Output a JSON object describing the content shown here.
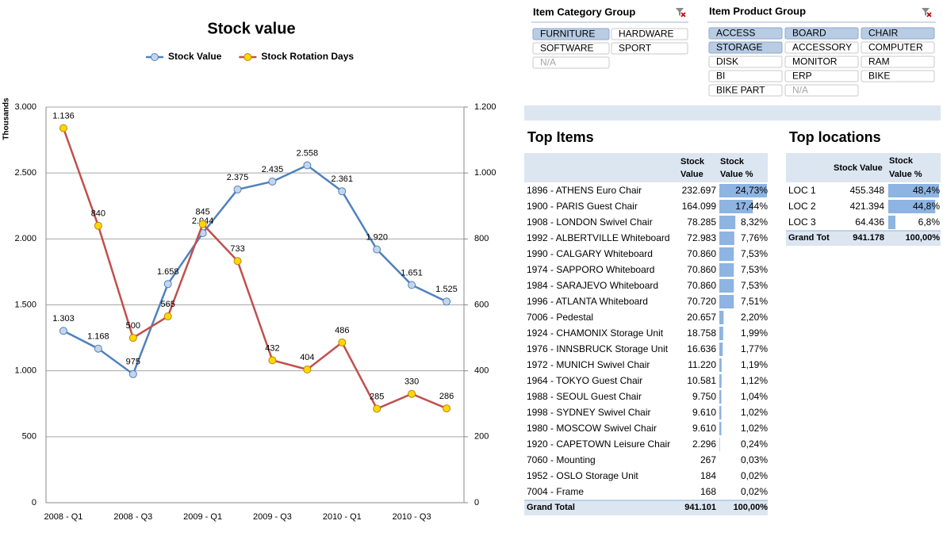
{
  "chart_data": {
    "type": "line",
    "title": "Stock value",
    "y_label": "Thousands",
    "categories": [
      "2008 - Q1",
      null,
      "2008 - Q3",
      null,
      "2009 - Q1",
      null,
      "2009 - Q3",
      null,
      "2010 - Q1",
      null,
      "2010 - Q3",
      null
    ],
    "series": [
      {
        "name": "Stock Value",
        "color": "#4f81bd",
        "marker_color": "#c5d5ea",
        "axis": "y",
        "values": [
          1303,
          1168,
          975,
          1658,
          2044,
          2375,
          2435,
          2558,
          2361,
          1920,
          1651,
          1525
        ],
        "value_labels": [
          "1.303",
          "1.168",
          "975",
          "1.658",
          "2.044",
          "2.375",
          "2.435",
          "2.558",
          "2.361",
          "1.920",
          "1.651",
          "1.525"
        ]
      },
      {
        "name": "Stock Rotation Days",
        "color": "#c0504d",
        "marker_color": "#ffd700",
        "axis": "y2",
        "values": [
          1136,
          840,
          500,
          565,
          845,
          733,
          432,
          404,
          486,
          285,
          330,
          286
        ],
        "value_labels": [
          "1.136",
          "840",
          "500",
          "565",
          "845",
          "733",
          "432",
          "404",
          "486",
          "285",
          "330",
          "286"
        ]
      }
    ],
    "ylim": [
      0,
      3000
    ],
    "yticks": [
      0,
      500,
      {
        "value": 1000,
        "label": "1.000"
      },
      {
        "value": 1500,
        "label": "1.500"
      },
      {
        "value": 2000,
        "label": "2.000"
      },
      {
        "value": 2500,
        "label": "2.500"
      },
      {
        "value": 3000,
        "label": "3.000"
      }
    ],
    "y2lim": [
      0,
      1200
    ],
    "y2ticks": [
      0,
      200,
      400,
      600,
      800,
      {
        "value": 1000,
        "label": "1.000"
      },
      {
        "value": 1200,
        "label": "1.200"
      }
    ],
    "grid": true,
    "legend": "top"
  },
  "slicers": [
    {
      "title": "Item Category Group",
      "items": [
        {
          "label": "FURNITURE",
          "selected": true,
          "has_data": true
        },
        {
          "label": "HARDWARE",
          "selected": false,
          "has_data": true
        },
        {
          "label": "SOFTWARE",
          "selected": false,
          "has_data": true
        },
        {
          "label": "SPORT",
          "selected": false,
          "has_data": true
        },
        {
          "label": "N/A",
          "selected": false,
          "has_data": false
        }
      ]
    },
    {
      "title": "Item Product Group",
      "items": [
        {
          "label": "ACCESS",
          "selected": true,
          "has_data": true
        },
        {
          "label": "BOARD",
          "selected": true,
          "has_data": true
        },
        {
          "label": "CHAIR",
          "selected": true,
          "has_data": true
        },
        {
          "label": "STORAGE",
          "selected": true,
          "has_data": true
        },
        {
          "label": "ACCESSORY",
          "selected": false,
          "has_data": true
        },
        {
          "label": "COMPUTER",
          "selected": false,
          "has_data": true
        },
        {
          "label": "DISK",
          "selected": false,
          "has_data": true
        },
        {
          "label": "MONITOR",
          "selected": false,
          "has_data": true
        },
        {
          "label": "RAM",
          "selected": false,
          "has_data": true
        },
        {
          "label": "BI",
          "selected": false,
          "has_data": true
        },
        {
          "label": "ERP",
          "selected": false,
          "has_data": true
        },
        {
          "label": "BIKE",
          "selected": false,
          "has_data": true
        },
        {
          "label": "BIKE PART",
          "selected": false,
          "has_data": true
        },
        {
          "label": "N/A",
          "selected": false,
          "has_data": false
        }
      ]
    }
  ],
  "top_items": {
    "title": "Top Items",
    "headers": [
      "Stock",
      "Value",
      "Stock",
      "Value %"
    ],
    "rows": [
      {
        "item": "1896 - ATHENS Euro Chair",
        "value": "232.697",
        "pct": 24.73,
        "pct_label": "24,73%"
      },
      {
        "item": "1900 - PARIS Guest Chair",
        "value": "164.099",
        "pct": 17.44,
        "pct_label": "17,44%"
      },
      {
        "item": "1908 - LONDON Swivel Chair",
        "value": "78.285",
        "pct": 8.32,
        "pct_label": "8,32%"
      },
      {
        "item": "1992 - ALBERTVILLE Whiteboard",
        "value": "72.983",
        "pct": 7.76,
        "pct_label": "7,76%"
      },
      {
        "item": "1990 - CALGARY Whiteboard",
        "value": "70.860",
        "pct": 7.53,
        "pct_label": "7,53%"
      },
      {
        "item": "1974 - SAPPORO Whiteboard",
        "value": "70.860",
        "pct": 7.53,
        "pct_label": "7,53%"
      },
      {
        "item": "1984 - SARAJEVO Whiteboard",
        "value": "70.860",
        "pct": 7.53,
        "pct_label": "7,53%"
      },
      {
        "item": "1996 - ATLANTA Whiteboard",
        "value": "70.720",
        "pct": 7.51,
        "pct_label": "7,51%"
      },
      {
        "item": "7006 - Pedestal",
        "value": "20.657",
        "pct": 2.2,
        "pct_label": "2,20%"
      },
      {
        "item": "1924 - CHAMONIX Storage Unit",
        "value": "18.758",
        "pct": 1.99,
        "pct_label": "1,99%"
      },
      {
        "item": "1976 - INNSBRUCK Storage Unit",
        "value": "16.636",
        "pct": 1.77,
        "pct_label": "1,77%"
      },
      {
        "item": "1972 - MUNICH Swivel Chair",
        "value": "11.220",
        "pct": 1.19,
        "pct_label": "1,19%"
      },
      {
        "item": "1964 - TOKYO Guest Chair",
        "value": "10.581",
        "pct": 1.12,
        "pct_label": "1,12%"
      },
      {
        "item": "1988 - SEOUL Guest Chair",
        "value": "9.750",
        "pct": 1.04,
        "pct_label": "1,04%"
      },
      {
        "item": "1998 - SYDNEY Swivel Chair",
        "value": "9.610",
        "pct": 1.02,
        "pct_label": "1,02%"
      },
      {
        "item": "1980 - MOSCOW Swivel Chair",
        "value": "9.610",
        "pct": 1.02,
        "pct_label": "1,02%"
      },
      {
        "item": "1920 - CAPETOWN Leisure Chair",
        "value": "2.296",
        "pct": 0.24,
        "pct_label": "0,24%"
      },
      {
        "item": "7060 - Mounting",
        "value": "267",
        "pct": 0.03,
        "pct_label": "0,03%"
      },
      {
        "item": "1952 - OSLO Storage Unit",
        "value": "184",
        "pct": 0.02,
        "pct_label": "0,02%"
      },
      {
        "item": "7004 - Frame",
        "value": "168",
        "pct": 0.02,
        "pct_label": "0,02%"
      }
    ],
    "total": {
      "item": "Grand Total",
      "value": "941.101",
      "pct_label": "100,00%"
    }
  },
  "top_locations": {
    "title": "Top locations",
    "headers": [
      "Stock Value",
      "Stock",
      "Value %"
    ],
    "rows": [
      {
        "item": "LOC 1",
        "value": "455.348",
        "pct": 48.4,
        "pct_label": "48,4%"
      },
      {
        "item": "LOC 2",
        "value": "421.394",
        "pct": 44.8,
        "pct_label": "44,8%"
      },
      {
        "item": "LOC 3",
        "value": "64.436",
        "pct": 6.8,
        "pct_label": "6,8%"
      }
    ],
    "total": {
      "item": "Grand Tot",
      "value": "941.178",
      "pct_label": "100,00%"
    }
  }
}
